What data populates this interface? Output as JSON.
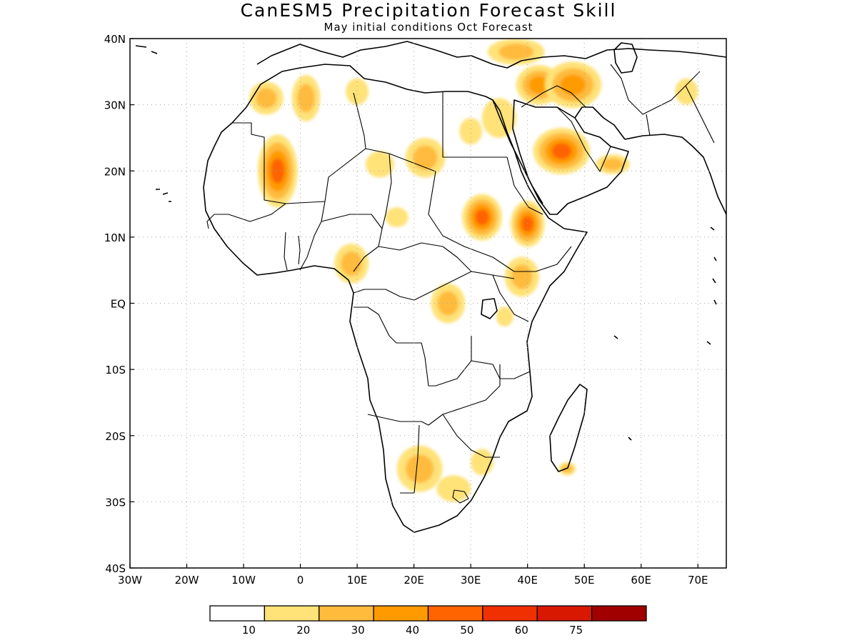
{
  "title": "CanESM5 Precipitation Forecast Skill",
  "subtitle": "May initial conditions  Oct Forecast",
  "map": {
    "lon_range": [
      -30,
      75
    ],
    "lat_range": [
      -40,
      40
    ],
    "lon_ticks": [
      {
        "value": -30,
        "label": "30W"
      },
      {
        "value": -20,
        "label": "20W"
      },
      {
        "value": -10,
        "label": "10W"
      },
      {
        "value": 0,
        "label": "0"
      },
      {
        "value": 10,
        "label": "10E"
      },
      {
        "value": 20,
        "label": "20E"
      },
      {
        "value": 30,
        "label": "30E"
      },
      {
        "value": 40,
        "label": "40E"
      },
      {
        "value": 50,
        "label": "50E"
      },
      {
        "value": 60,
        "label": "60E"
      },
      {
        "value": 70,
        "label": "70E"
      }
    ],
    "lat_ticks": [
      {
        "value": 40,
        "label": "40N"
      },
      {
        "value": 30,
        "label": "30N"
      },
      {
        "value": 20,
        "label": "20N"
      },
      {
        "value": 10,
        "label": "10N"
      },
      {
        "value": 0,
        "label": "EQ"
      },
      {
        "value": -10,
        "label": "10S"
      },
      {
        "value": -20,
        "label": "20S"
      },
      {
        "value": -30,
        "label": "30S"
      },
      {
        "value": -40,
        "label": "40S"
      }
    ]
  },
  "legend": {
    "bins": [
      {
        "color": "#ffffff"
      },
      {
        "color": "#ffe278"
      },
      {
        "color": "#ffbb3c"
      },
      {
        "color": "#ff9b00"
      },
      {
        "color": "#ff6400"
      },
      {
        "color": "#f03000"
      },
      {
        "color": "#d81800"
      },
      {
        "color": "#a00000"
      }
    ],
    "labels": [
      "10",
      "20",
      "30",
      "40",
      "50",
      "60",
      "75"
    ]
  },
  "skill_regions": [
    {
      "lon": -4,
      "lat": 20,
      "rx": 3.5,
      "ry": 5.5,
      "level": 4
    },
    {
      "lon": 32,
      "lat": 13,
      "rx": 3.5,
      "ry": 3.5,
      "level": 4
    },
    {
      "lon": 40,
      "lat": 12,
      "rx": 3,
      "ry": 3.5,
      "level": 4
    },
    {
      "lon": 46,
      "lat": 23,
      "rx": 5,
      "ry": 3.5,
      "level": 4
    },
    {
      "lon": 42,
      "lat": 33,
      "rx": 4,
      "ry": 3,
      "level": 3
    },
    {
      "lon": 48,
      "lat": 33,
      "rx": 5,
      "ry": 3.5,
      "level": 3
    },
    {
      "lon": -6,
      "lat": 31,
      "rx": 3,
      "ry": 2.5,
      "level": 2
    },
    {
      "lon": 1,
      "lat": 31,
      "rx": 2.5,
      "ry": 3.5,
      "level": 2
    },
    {
      "lon": 22,
      "lat": 22,
      "rx": 3.5,
      "ry": 3,
      "level": 2
    },
    {
      "lon": 26,
      "lat": 0,
      "rx": 3,
      "ry": 3,
      "level": 2
    },
    {
      "lon": 9,
      "lat": 6,
      "rx": 3,
      "ry": 3,
      "level": 2
    },
    {
      "lon": 39,
      "lat": 4,
      "rx": 3,
      "ry": 3,
      "level": 2
    },
    {
      "lon": 21,
      "lat": -25,
      "rx": 4,
      "ry": 3.5,
      "level": 2
    },
    {
      "lon": 27,
      "lat": -28,
      "rx": 3,
      "ry": 2,
      "level": 1
    },
    {
      "lon": 55,
      "lat": 21,
      "rx": 3,
      "ry": 1.5,
      "level": 2
    },
    {
      "lon": 35,
      "lat": 28,
      "rx": 3,
      "ry": 3,
      "level": 1
    },
    {
      "lon": 14,
      "lat": 21,
      "rx": 2.5,
      "ry": 2,
      "level": 1
    },
    {
      "lon": 17,
      "lat": 13,
      "rx": 2,
      "ry": 1.5,
      "level": 1
    },
    {
      "lon": 30,
      "lat": 26,
      "rx": 2,
      "ry": 2,
      "level": 1
    },
    {
      "lon": 47,
      "lat": -25,
      "rx": 1.5,
      "ry": 1,
      "level": 2
    },
    {
      "lon": 36,
      "lat": -2,
      "rx": 1.5,
      "ry": 1.5,
      "level": 1
    },
    {
      "lon": 10,
      "lat": 32,
      "rx": 2,
      "ry": 2,
      "level": 1
    },
    {
      "lon": 38,
      "lat": 38,
      "rx": 5,
      "ry": 2,
      "level": 2
    },
    {
      "lon": 68,
      "lat": 32,
      "rx": 2,
      "ry": 2,
      "level": 1
    },
    {
      "lon": 32,
      "lat": -24,
      "rx": 2,
      "ry": 2,
      "level": 1
    }
  ]
}
